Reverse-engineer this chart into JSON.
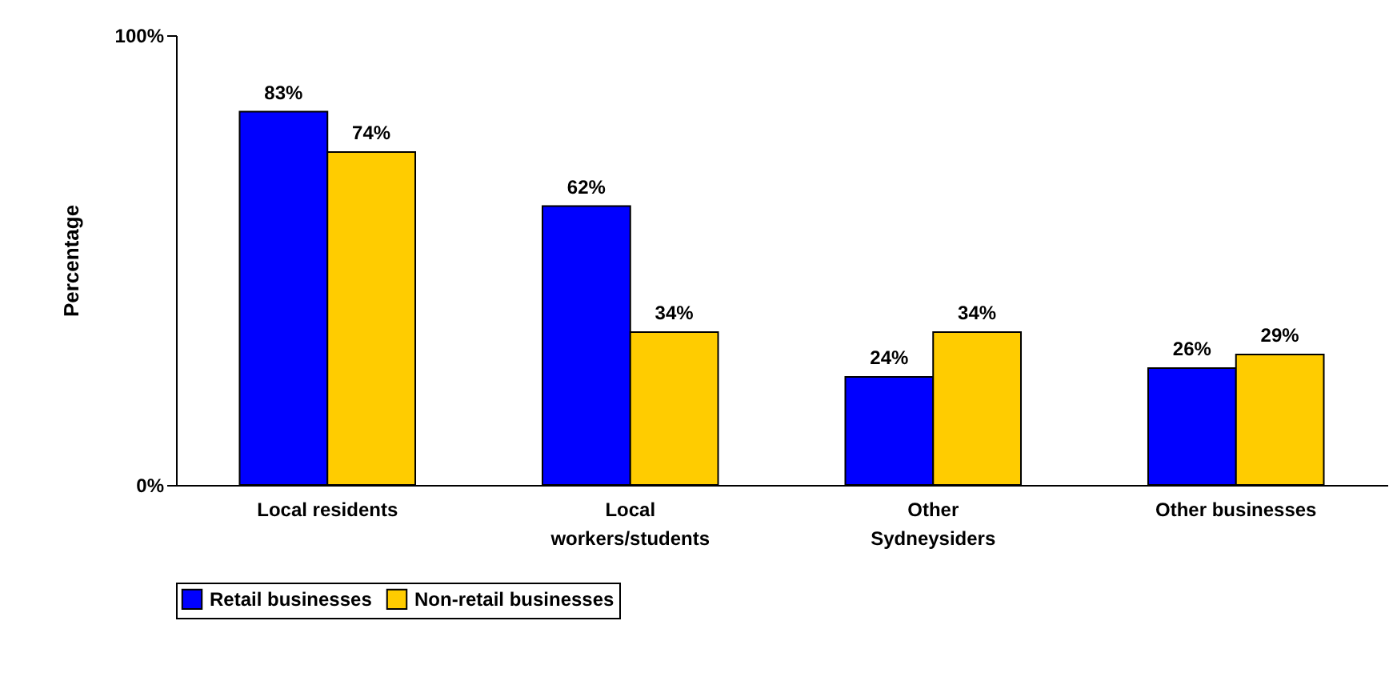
{
  "chart_data": {
    "type": "bar",
    "ylabel": "Percentage",
    "categories": [
      "Local residents",
      "Local workers/students",
      "Other Sydneysiders",
      "Other businesses"
    ],
    "series": [
      {
        "name": "Retail businesses",
        "color": "#0000ff",
        "values": [
          83,
          62,
          24,
          26
        ],
        "value_labels": [
          "83%",
          "62%",
          "24%",
          "26%"
        ]
      },
      {
        "name": "Non-retail businesses",
        "color": "#ffcc00",
        "values": [
          74,
          34,
          34,
          29
        ],
        "value_labels": [
          "74%",
          "34%",
          "34%",
          "29%"
        ]
      }
    ],
    "ylim": [
      0,
      100
    ],
    "yticks": [
      {
        "value": 0,
        "label": "0%"
      },
      {
        "value": 100,
        "label": "100%"
      }
    ],
    "grid": false,
    "legend": "bottom"
  }
}
